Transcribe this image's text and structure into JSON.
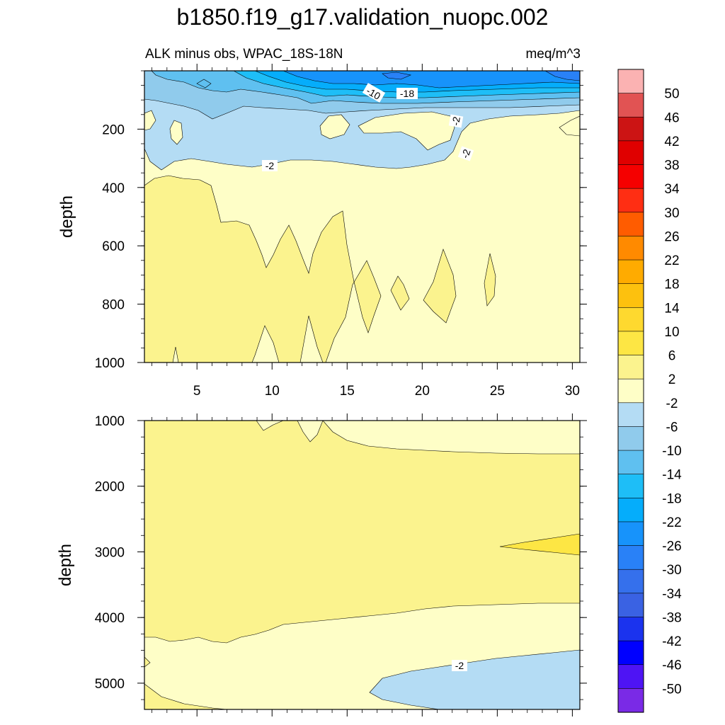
{
  "chart_data": {
    "type": "contour",
    "title": "b1850.f19_g17.validation_nuopc.002",
    "subtitle_left": "ALK minus obs, WPAC_18S-18N",
    "subtitle_right": "meq/m^3",
    "panels": [
      {
        "id": "upper",
        "ylabel": "depth",
        "ylim": [
          0,
          1000
        ],
        "yreversed": true,
        "yticks": [
          200,
          400,
          600,
          800,
          1000
        ],
        "xlim": [
          1.5,
          30.5
        ],
        "xticks": [
          5,
          10,
          15,
          20,
          25,
          30
        ],
        "contour_labels": [
          "-10",
          "-18",
          "-2",
          "-2",
          "-2"
        ]
      },
      {
        "id": "lower",
        "ylabel": "depth",
        "ylim": [
          1000,
          5400
        ],
        "yreversed": true,
        "yticks": [
          1000,
          2000,
          3000,
          4000,
          5000
        ],
        "xlim": [
          1.5,
          30.5
        ],
        "contour_labels": [
          "-2"
        ]
      }
    ],
    "colorbar": {
      "labels": [
        "50",
        "46",
        "42",
        "38",
        "34",
        "30",
        "26",
        "22",
        "18",
        "14",
        "10",
        "6",
        "2",
        "-2",
        "-6",
        "-10",
        "-14",
        "-18",
        "-22",
        "-26",
        "-30",
        "-34",
        "-38",
        "-42",
        "-46",
        "-50"
      ],
      "colors": [
        "#fbb2b2",
        "#e15353",
        "#cc1414",
        "#e00000",
        "#f50000",
        "#ff2e13",
        "#ff5c00",
        "#ff8a00",
        "#ffab00",
        "#fdc10e",
        "#fed92f",
        "#fde644",
        "#fbf38e",
        "#fefec7",
        "#b4dcf4",
        "#90cbec",
        "#5fc0f0",
        "#1ebef7",
        "#05adfb",
        "#1793fb",
        "#2981f7",
        "#3570ec",
        "#3a62e3",
        "#1b33ee",
        "#0000ff",
        "#4e14f4",
        "#7a2ae6"
      ]
    },
    "palette": {
      "neg2": "#b4dcf4",
      "neg6": "#90cbec",
      "neg10": "#5fc0f0",
      "neg14": "#1ebef7",
      "neg18": "#05adfb",
      "neg22": "#1793fb",
      "neg26": "#2981f7",
      "pos": "#fefec7",
      "pos2": "#fbf38e",
      "pos6": "#fde644"
    }
  }
}
